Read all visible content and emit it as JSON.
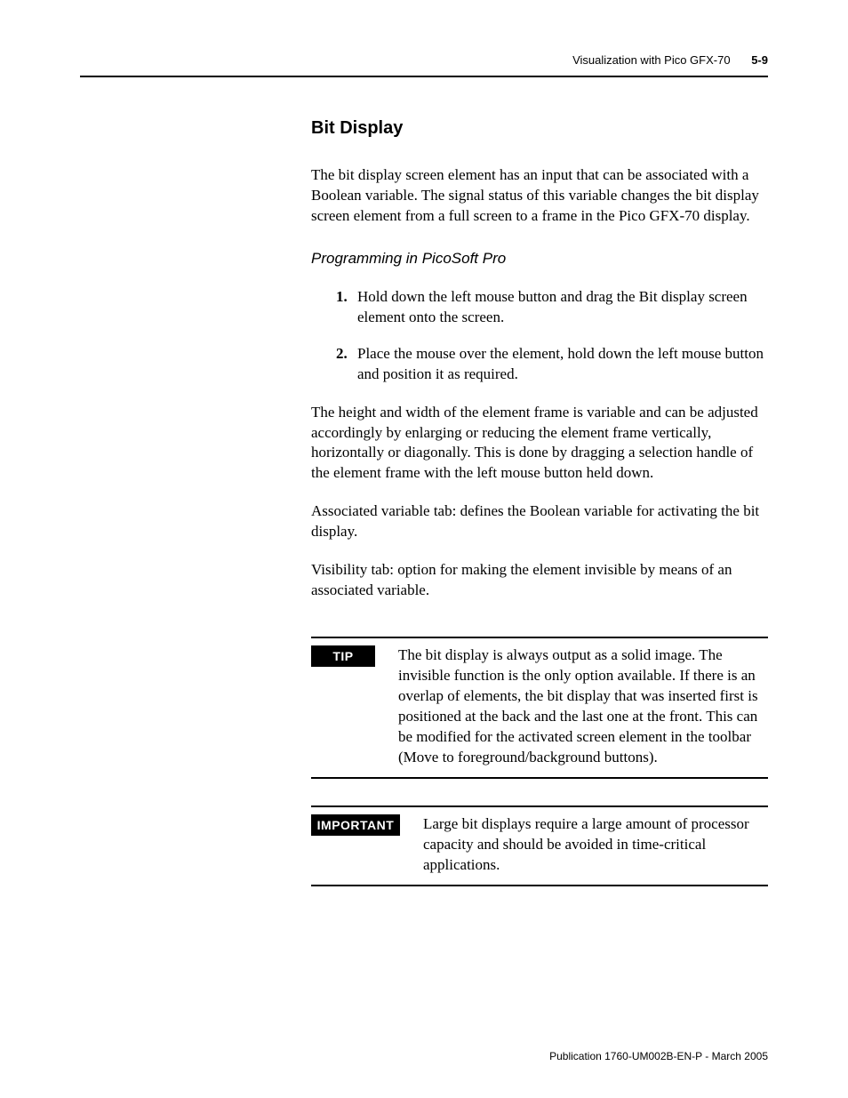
{
  "header": {
    "chapter_title": "Visualization with Pico GFX-70",
    "page_number": "5-9"
  },
  "section": {
    "title": "Bit Display",
    "intro": "The bit display screen element has an input that can be associated with a Boolean variable. The signal status of this variable changes the bit display screen element from a full screen to a frame in the Pico GFX-70 display.",
    "subheading": "Programming in PicoSoft Pro",
    "steps": [
      "Hold down the left mouse button and drag the Bit display screen element onto the screen.",
      "Place the mouse over the element, hold down the left mouse button and position it as required."
    ],
    "paragraphs": [
      "The height and width of the element frame is variable and can be adjusted accordingly by enlarging or reducing the element frame vertically, horizontally or diagonally. This is done by dragging a selection handle of the element frame with the left mouse button held down.",
      "Associated variable tab: defines the Boolean variable for activating the bit display.",
      "Visibility tab: option for making the element invisible by means of an associated variable."
    ],
    "tip": {
      "label": "TIP",
      "text": "The bit display is always output as a solid image. The invisible function is the only option available. If there is an overlap of elements, the bit display that was inserted first is positioned at the back and the last one at the front. This can be modified for the activated screen element in the toolbar (Move to foreground/background buttons)."
    },
    "important": {
      "label": "IMPORTANT",
      "text": "Large bit displays require a large amount of processor capacity and should be avoided in time-critical applications."
    }
  },
  "footer": {
    "publication": "Publication 1760-UM002B-EN-P - March 2005"
  },
  "colors": {
    "text": "#000000",
    "background": "#ffffff",
    "rule": "#000000",
    "label_bg": "#000000",
    "label_fg": "#ffffff"
  }
}
